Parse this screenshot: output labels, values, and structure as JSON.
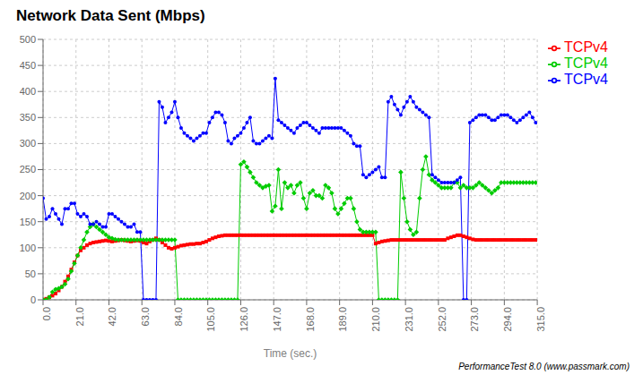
{
  "chart_data": {
    "type": "line",
    "title": "Network Data Sent (Mbps)",
    "xlabel": "Time (sec.)",
    "annotations": [
      "PerformanceTest 8.0 (www.passmark.com)"
    ],
    "grid": true,
    "legend": "right",
    "xlim": [
      0,
      315
    ],
    "ylim": [
      0,
      500
    ],
    "xticks": [
      {
        "value": 0,
        "label": "0.0"
      },
      {
        "value": 21,
        "label": "21.0"
      },
      {
        "value": 42,
        "label": "42.0"
      },
      {
        "value": 63,
        "label": "63.0"
      },
      {
        "value": 84,
        "label": "84.0"
      },
      {
        "value": 105,
        "label": "105.0"
      },
      {
        "value": 126,
        "label": "126.0"
      },
      {
        "value": 147,
        "label": "147.0"
      },
      {
        "value": 168,
        "label": "168.0"
      },
      {
        "value": 189,
        "label": "189.0"
      },
      {
        "value": 210,
        "label": "210.0"
      },
      {
        "value": 231,
        "label": "231.0"
      },
      {
        "value": 252,
        "label": "252.0"
      },
      {
        "value": 273,
        "label": "273.0"
      },
      {
        "value": 294,
        "label": "294.0"
      },
      {
        "value": 315,
        "label": "315.0"
      }
    ],
    "yticks": [
      0,
      50,
      100,
      150,
      200,
      250,
      300,
      350,
      400,
      450,
      500
    ],
    "x": [
      0,
      2,
      4,
      6,
      8,
      10,
      12,
      14,
      16,
      18,
      20,
      22,
      24,
      26,
      28,
      30,
      32,
      34,
      36,
      38,
      40,
      42,
      44,
      46,
      48,
      50,
      52,
      54,
      56,
      58,
      60,
      62,
      64,
      66,
      68,
      70,
      72,
      74,
      76,
      78,
      80,
      82,
      84,
      86,
      88,
      90,
      92,
      94,
      96,
      98,
      100,
      102,
      104,
      106,
      108,
      110,
      112,
      114,
      116,
      118,
      120,
      122,
      124,
      126,
      128,
      130,
      132,
      134,
      136,
      138,
      140,
      142,
      144,
      146,
      148,
      150,
      152,
      154,
      156,
      158,
      160,
      162,
      164,
      166,
      168,
      170,
      172,
      174,
      176,
      178,
      180,
      182,
      184,
      186,
      188,
      190,
      192,
      194,
      196,
      198,
      200,
      202,
      204,
      206,
      208,
      210,
      212,
      214,
      216,
      218,
      220,
      222,
      224,
      226,
      228,
      230,
      232,
      234,
      236,
      238,
      240,
      242,
      244,
      246,
      248,
      250,
      252,
      254,
      256,
      258,
      260,
      262,
      264,
      266,
      268,
      270,
      272,
      274,
      276,
      278,
      280,
      282,
      284,
      286,
      288,
      290,
      292,
      294,
      296,
      298,
      300,
      302,
      304,
      306,
      308,
      310,
      312,
      314
    ],
    "series": [
      {
        "name": "TCPv4",
        "color": "#ff0000",
        "marker": "square",
        "values": [
          0,
          2,
          5,
          8,
          12,
          18,
          25,
          35,
          45,
          58,
          72,
          85,
          95,
          100,
          105,
          108,
          110,
          111,
          112,
          113,
          114,
          113,
          112,
          113,
          114,
          115,
          114,
          113,
          112,
          113,
          114,
          113,
          110,
          108,
          112,
          115,
          118,
          115,
          110,
          105,
          100,
          98,
          100,
          102,
          104,
          105,
          106,
          107,
          107,
          108,
          108,
          110,
          112,
          115,
          118,
          120,
          122,
          123,
          124,
          124,
          124,
          124,
          124,
          124,
          124,
          124,
          124,
          124,
          124,
          124,
          124,
          124,
          124,
          124,
          124,
          124,
          124,
          124,
          124,
          124,
          124,
          124,
          124,
          124,
          124,
          124,
          124,
          124,
          124,
          124,
          124,
          124,
          124,
          124,
          124,
          124,
          124,
          124,
          124,
          124,
          124,
          124,
          124,
          124,
          124,
          124,
          108,
          110,
          112,
          113,
          114,
          115,
          115,
          115,
          115,
          115,
          115,
          115,
          115,
          115,
          115,
          115,
          115,
          115,
          115,
          115,
          115,
          115,
          115,
          118,
          120,
          122,
          124,
          124,
          122,
          120,
          118,
          116,
          115,
          115,
          115,
          115,
          115,
          115,
          115,
          115,
          115,
          115,
          115,
          115,
          115,
          115,
          115,
          115,
          115,
          115,
          115,
          115
        ]
      },
      {
        "name": "TCPv4",
        "color": "#00cc00",
        "marker": "diamond",
        "values": [
          0,
          0,
          5,
          15,
          20,
          22,
          25,
          30,
          40,
          55,
          70,
          85,
          100,
          115,
          130,
          140,
          145,
          140,
          135,
          130,
          125,
          120,
          118,
          116,
          115,
          115,
          115,
          115,
          115,
          115,
          115,
          115,
          115,
          115,
          115,
          115,
          115,
          115,
          115,
          115,
          115,
          115,
          115,
          0,
          0,
          0,
          0,
          0,
          0,
          0,
          0,
          0,
          0,
          0,
          0,
          0,
          0,
          0,
          0,
          0,
          0,
          0,
          0,
          260,
          265,
          255,
          245,
          235,
          225,
          220,
          215,
          218,
          220,
          170,
          180,
          250,
          175,
          225,
          215,
          220,
          205,
          220,
          225,
          195,
          175,
          205,
          210,
          200,
          200,
          195,
          220,
          215,
          205,
          175,
          165,
          175,
          185,
          195,
          195,
          175,
          150,
          135,
          130,
          130,
          130,
          130,
          130,
          0,
          0,
          0,
          0,
          0,
          0,
          0,
          245,
          195,
          150,
          135,
          125,
          130,
          195,
          250,
          275,
          240,
          230,
          225,
          220,
          215,
          215,
          215,
          215,
          225,
          225,
          215,
          220,
          215,
          215,
          215,
          220,
          225,
          220,
          215,
          210,
          205,
          210,
          215,
          225,
          225,
          225,
          225,
          225,
          225,
          225,
          225,
          225,
          225,
          225,
          225
        ]
      },
      {
        "name": "TCPv4",
        "color": "#0000ff",
        "marker": "circle",
        "values": [
          195,
          155,
          160,
          175,
          165,
          155,
          145,
          175,
          175,
          185,
          185,
          165,
          160,
          165,
          160,
          145,
          145,
          150,
          145,
          140,
          140,
          165,
          165,
          160,
          155,
          150,
          145,
          140,
          140,
          145,
          130,
          130,
          0,
          0,
          0,
          0,
          0,
          380,
          370,
          340,
          350,
          360,
          380,
          350,
          330,
          320,
          315,
          310,
          305,
          310,
          315,
          320,
          320,
          340,
          350,
          360,
          360,
          355,
          340,
          305,
          300,
          310,
          315,
          320,
          330,
          340,
          350,
          305,
          300,
          300,
          305,
          310,
          315,
          310,
          425,
          345,
          340,
          335,
          330,
          325,
          320,
          330,
          335,
          340,
          340,
          335,
          330,
          325,
          320,
          330,
          330,
          330,
          330,
          330,
          330,
          330,
          325,
          320,
          315,
          300,
          295,
          295,
          240,
          235,
          240,
          245,
          250,
          255,
          235,
          235,
          380,
          390,
          375,
          365,
          355,
          370,
          380,
          390,
          380,
          370,
          365,
          360,
          355,
          350,
          240,
          235,
          230,
          225,
          225,
          225,
          225,
          225,
          230,
          235,
          0,
          0,
          340,
          345,
          350,
          355,
          355,
          355,
          350,
          345,
          345,
          350,
          355,
          355,
          355,
          350,
          345,
          340,
          345,
          350,
          355,
          360,
          350,
          340
        ]
      }
    ]
  }
}
